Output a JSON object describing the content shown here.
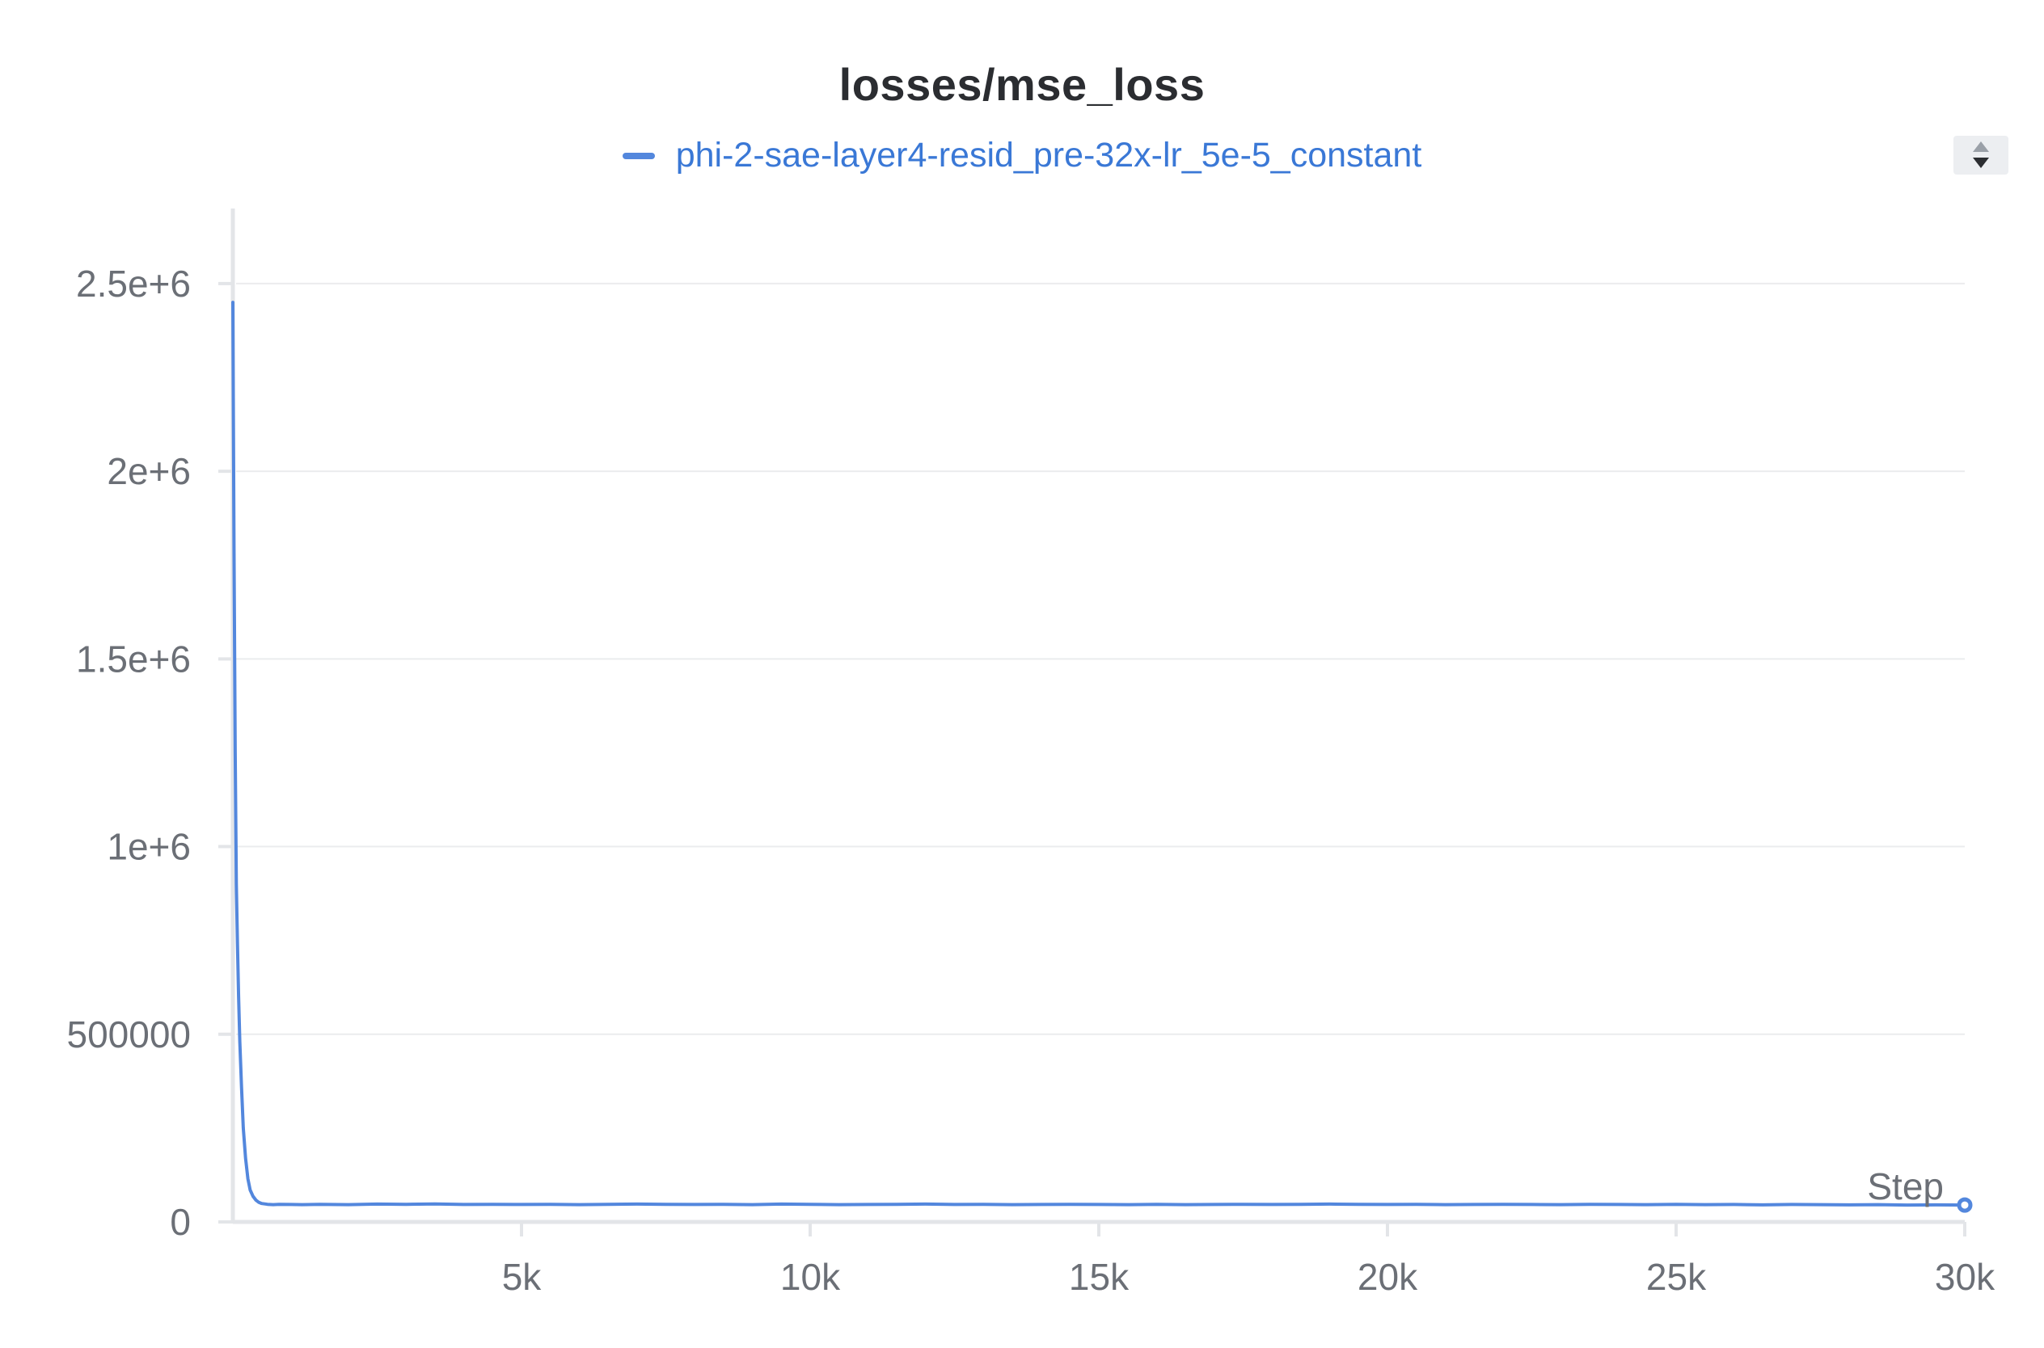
{
  "chart_data": {
    "type": "line",
    "title": "losses/mse_loss",
    "xlabel": "Step",
    "ylabel": "",
    "xlim": [
      0,
      30000
    ],
    "ylim": [
      0,
      2700000
    ],
    "grid": true,
    "legend_position": "top-center",
    "x_ticks": [
      {
        "value": 5000,
        "label": "5k"
      },
      {
        "value": 10000,
        "label": "10k"
      },
      {
        "value": 15000,
        "label": "15k"
      },
      {
        "value": 20000,
        "label": "20k"
      },
      {
        "value": 25000,
        "label": "25k"
      },
      {
        "value": 30000,
        "label": "30k"
      }
    ],
    "y_ticks": [
      {
        "value": 0,
        "label": "0"
      },
      {
        "value": 500000,
        "label": "500000"
      },
      {
        "value": 1000000,
        "label": "1e+6"
      },
      {
        "value": 1500000,
        "label": "1.5e+6"
      },
      {
        "value": 2000000,
        "label": "2e+6"
      },
      {
        "value": 2500000,
        "label": "2.5e+6"
      }
    ],
    "series": [
      {
        "name": "phi-2-sae-layer4-resid_pre-32x-lr_5e-5_constant",
        "color": "#5387dd",
        "x": [
          0,
          20,
          40,
          60,
          80,
          100,
          120,
          150,
          180,
          220,
          260,
          300,
          350,
          400,
          450,
          500,
          600,
          700,
          800,
          1000,
          1200,
          1500,
          2000,
          2500,
          3000,
          3500,
          4000,
          4500,
          5000,
          5500,
          6000,
          6500,
          7000,
          7500,
          8000,
          8500,
          9000,
          9500,
          10000,
          10500,
          11000,
          11500,
          12000,
          12500,
          13000,
          13500,
          14000,
          14500,
          15000,
          15500,
          16000,
          16500,
          17000,
          17500,
          18000,
          18500,
          19000,
          19500,
          20000,
          20500,
          21000,
          21500,
          22000,
          22500,
          23000,
          23500,
          24000,
          24500,
          25000,
          25500,
          26000,
          26500,
          27000,
          27500,
          28000,
          28500,
          29000,
          29500,
          30000
        ],
        "y": [
          2450000,
          1800000,
          1250000,
          900000,
          740000,
          600000,
          480000,
          360000,
          250000,
          170000,
          115000,
          85000,
          68000,
          58000,
          52000,
          49000,
          47000,
          46000,
          47000,
          46500,
          46000,
          47000,
          46000,
          47500,
          47000,
          48000,
          46500,
          47000,
          46500,
          47000,
          46000,
          47000,
          47500,
          47000,
          46500,
          47000,
          46000,
          47500,
          47000,
          46000,
          46500,
          47000,
          47500,
          46500,
          47000,
          46000,
          46500,
          47000,
          46500,
          46000,
          47000,
          46000,
          46500,
          47000,
          46500,
          47000,
          47500,
          47000,
          46500,
          47000,
          46000,
          46500,
          47000,
          46500,
          46000,
          47000,
          46500,
          46000,
          47000,
          46000,
          46500,
          45500,
          46500,
          46000,
          45500,
          46000,
          45000,
          45500,
          45000
        ]
      }
    ]
  }
}
